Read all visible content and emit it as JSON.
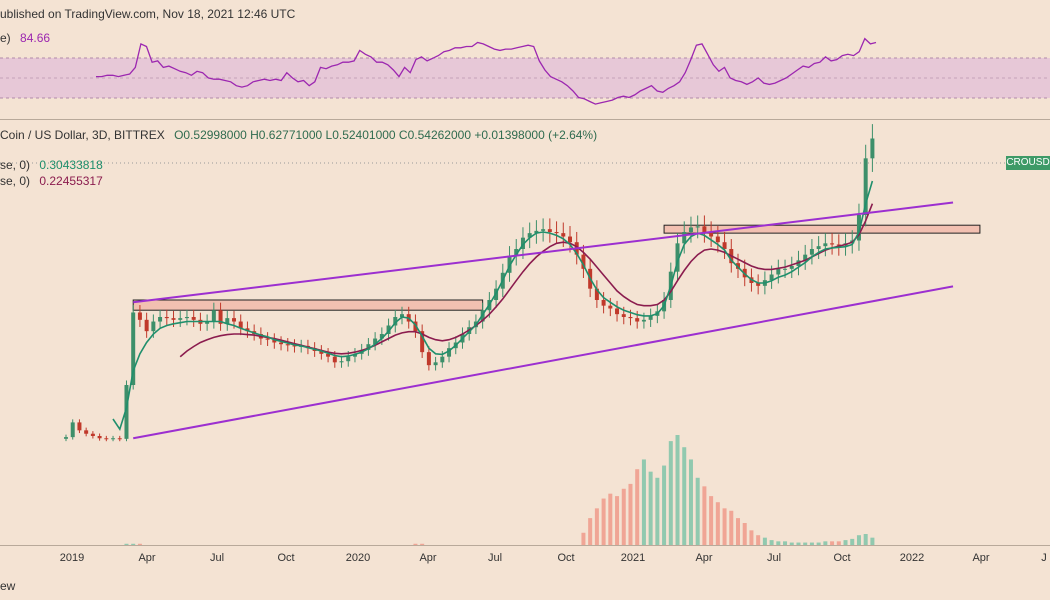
{
  "header": {
    "published": "ublished on TradingView.com, Nov 18, 2021 12:46 UTC"
  },
  "rsi": {
    "label": "e)",
    "value": "84.66",
    "line_color": "#9c27b0",
    "band_color": "#e1bcd6",
    "series": [
      59,
      59,
      60,
      60,
      59,
      60,
      61,
      66,
      84,
      82,
      70,
      71,
      66,
      67,
      65,
      63,
      62,
      60,
      63,
      62,
      58,
      57,
      57,
      56,
      55,
      52,
      51,
      52,
      55,
      56,
      57,
      56,
      57,
      56,
      62,
      58,
      55,
      56,
      52,
      55,
      66,
      65,
      67,
      68,
      70,
      70,
      71,
      79,
      76,
      74,
      70,
      70,
      68,
      64,
      59,
      66,
      62,
      72,
      74,
      71,
      73,
      75,
      78,
      79,
      81,
      81,
      82,
      82,
      85,
      84,
      82,
      80,
      79,
      80,
      80,
      81,
      82,
      83,
      82,
      71,
      64,
      59,
      57,
      55,
      52,
      48,
      43,
      42,
      40,
      38,
      39,
      40,
      41,
      43,
      44,
      43,
      45,
      48,
      50,
      52,
      48,
      47,
      50,
      52,
      55,
      62,
      72,
      83,
      84,
      76,
      68,
      63,
      66,
      58,
      56,
      55,
      53,
      55,
      58,
      54,
      53,
      54,
      56,
      58,
      61,
      64,
      67,
      66,
      69,
      70,
      74,
      71,
      72,
      75,
      76,
      75,
      78,
      88,
      84,
      85
    ]
  },
  "main": {
    "title": "Coin / US Dollar, 3D, BITTREX",
    "ohlc": "O0.52998000  H0.62771000  L0.52401000  C0.54262000  +0.01398000 (+2.64%)",
    "ma_fast_label": "se, 0)",
    "ma_fast_value": "0.30433818",
    "ma_fast_color": "#1f8f6c",
    "ma_slow_label": "se, 0)",
    "ma_slow_value": "0.22455317",
    "ma_slow_color": "#8b1c4e",
    "price_tag": "CROUSD",
    "up_color": "#3d8f6a",
    "down_color": "#c0392b",
    "channel_color": "#9c2fd0",
    "zone_fill": "#f2b4a6"
  },
  "axis": {
    "ticks": [
      "2019",
      "Apr",
      "Jul",
      "Oct",
      "2020",
      "Apr",
      "Jul",
      "Oct",
      "2021",
      "Apr",
      "Jul",
      "Oct",
      "2022",
      "Apr",
      "J"
    ]
  },
  "footer": {
    "text": "ew"
  },
  "chart_data": {
    "type": "line",
    "title": "Coin / US Dollar, 3D, BITTREX",
    "xlabel": "",
    "ylabel": "",
    "x_unit": "3-day bars",
    "close_index": [
      58,
      84,
      70,
      64,
      60,
      56,
      55,
      56,
      55,
      150,
      278,
      265,
      245,
      262,
      270,
      268,
      265,
      268,
      270,
      265,
      258,
      262,
      282,
      258,
      268,
      262,
      250,
      245,
      240,
      232,
      230,
      225,
      222,
      220,
      218,
      219,
      215,
      210,
      205,
      200,
      190,
      192,
      200,
      205,
      212,
      222,
      232,
      240,
      255,
      270,
      275,
      262,
      245,
      208,
      185,
      190,
      200,
      215,
      225,
      240,
      252,
      262,
      282,
      300,
      320,
      348,
      378,
      390,
      410,
      418,
      422,
      425,
      420,
      418,
      412,
      402,
      380,
      355,
      320,
      300,
      290,
      285,
      275,
      270,
      268,
      262,
      265,
      272,
      280,
      300,
      350,
      400,
      420,
      428,
      430,
      420,
      412,
      402,
      390,
      365,
      355,
      340,
      330,
      325,
      335,
      345,
      355,
      355,
      360,
      370,
      380,
      390,
      395,
      400,
      398,
      396,
      400,
      405,
      450,
      550,
      585
    ],
    "ma_fast": [
      null,
      null,
      null,
      null,
      null,
      null,
      null,
      90,
      72,
      110,
      175,
      205,
      225,
      240,
      250,
      255,
      258,
      260,
      262,
      262,
      262,
      262,
      262,
      262,
      258,
      255,
      250,
      246,
      242,
      238,
      235,
      230,
      227,
      224,
      221,
      219,
      216,
      213,
      210,
      206,
      202,
      200,
      201,
      204,
      208,
      214,
      222,
      232,
      245,
      260,
      270,
      268,
      256,
      236,
      215,
      205,
      204,
      210,
      220,
      232,
      244,
      256,
      274,
      292,
      312,
      335,
      360,
      380,
      398,
      410,
      418,
      420,
      418,
      414,
      408,
      398,
      382,
      362,
      338,
      318,
      304,
      296,
      288,
      282,
      278,
      274,
      272,
      272,
      276,
      290,
      325,
      368,
      398,
      412,
      418,
      414,
      406,
      398,
      388,
      370,
      358,
      346,
      336,
      330,
      330,
      334,
      340,
      344,
      350,
      358,
      366,
      376,
      384,
      390,
      392,
      393,
      394,
      398,
      420,
      470,
      510
    ],
    "ma_slow": [
      null,
      null,
      null,
      null,
      null,
      null,
      null,
      null,
      null,
      null,
      null,
      null,
      null,
      null,
      null,
      null,
      null,
      200,
      210,
      218,
      225,
      230,
      234,
      237,
      239,
      240,
      240,
      239,
      238,
      236,
      234,
      232,
      229,
      226,
      223,
      220,
      217,
      214,
      211,
      208,
      206,
      205,
      206,
      208,
      211,
      215,
      220,
      226,
      232,
      238,
      242,
      244,
      244,
      240,
      234,
      230,
      228,
      230,
      234,
      240,
      247,
      255,
      264,
      275,
      288,
      302,
      318,
      334,
      350,
      364,
      376,
      386,
      394,
      400,
      402,
      400,
      394,
      384,
      372,
      358,
      344,
      330,
      316,
      306,
      298,
      292,
      290,
      290,
      292,
      300,
      315,
      334,
      352,
      368,
      380,
      388,
      390,
      388,
      384,
      378,
      372,
      366,
      360,
      356,
      354,
      354,
      356,
      358,
      362,
      366,
      370,
      376,
      382,
      388,
      392,
      395,
      398,
      402,
      415,
      440,
      470
    ],
    "volume": [
      0,
      0,
      0,
      0,
      0,
      0,
      0,
      0,
      0,
      1,
      1,
      1,
      0,
      0,
      0,
      0,
      0,
      0,
      0,
      0,
      0,
      0,
      0,
      0,
      0,
      0,
      0,
      0,
      0,
      0,
      0,
      0,
      0,
      0,
      0,
      0,
      0,
      0,
      0,
      0,
      0,
      0,
      0,
      0,
      0,
      0,
      0,
      0,
      0,
      0,
      0,
      0,
      1,
      1,
      0,
      0,
      0,
      0,
      0,
      0,
      0,
      0,
      0,
      0,
      0,
      0,
      0,
      0,
      0,
      0,
      0,
      0,
      0,
      0,
      0,
      0,
      0,
      10,
      22,
      30,
      38,
      42,
      40,
      46,
      50,
      62,
      70,
      60,
      55,
      65,
      85,
      90,
      80,
      70,
      55,
      48,
      40,
      35,
      30,
      28,
      22,
      18,
      12,
      8,
      6,
      4,
      3,
      3,
      2,
      2,
      2,
      2,
      2,
      3,
      3,
      3,
      4,
      5,
      8,
      9,
      6
    ],
    "resistance_zones": [
      {
        "from_bar": 10,
        "to_bar": 62,
        "low": 282,
        "high": 300
      },
      {
        "from_bar": 89,
        "to_bar": 136,
        "low": 418,
        "high": 432
      }
    ],
    "channel_upper": {
      "from": [
        10,
        296
      ],
      "to": [
        132,
        472
      ]
    },
    "channel_lower": {
      "from": [
        10,
        56
      ],
      "to": [
        132,
        324
      ]
    },
    "last_close": 0.54262,
    "ma_fast_last": 0.30433818,
    "ma_slow_last": 0.22455317,
    "rsi_last": 84.66
  }
}
